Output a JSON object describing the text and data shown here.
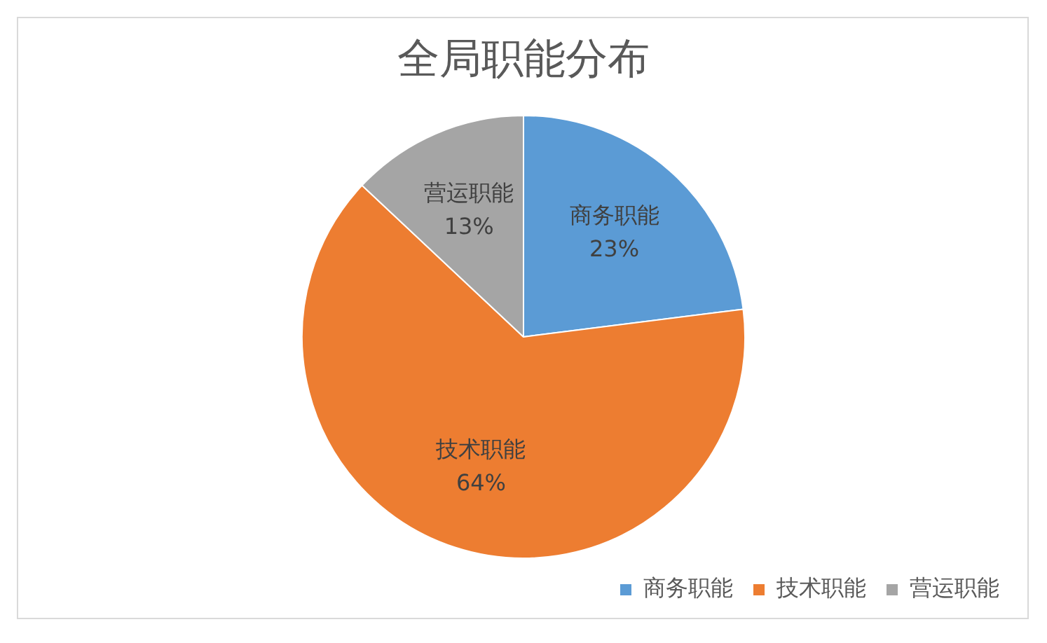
{
  "chart_data": {
    "type": "pie",
    "title": "全局职能分布",
    "categories": [
      "商务职能",
      "技术职能",
      "营运职能"
    ],
    "values": [
      23,
      64,
      13
    ],
    "value_labels": [
      "23%",
      "64%",
      "13%"
    ],
    "colors": [
      "#5b9bd5",
      "#ed7d31",
      "#a5a5a5"
    ],
    "legend": "bottom right"
  }
}
